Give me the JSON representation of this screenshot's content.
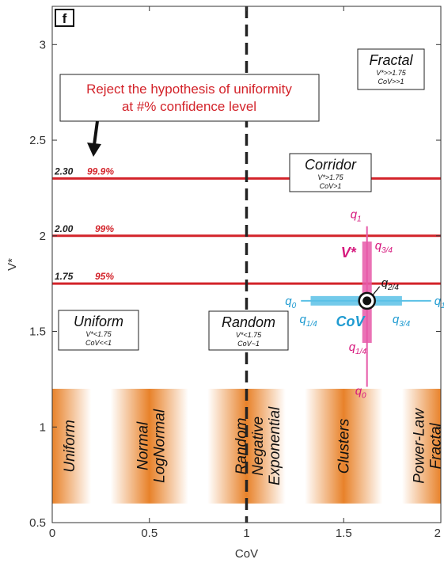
{
  "chart_data": {
    "type": "line",
    "panel_label": "f",
    "xlabel": "CoV",
    "ylabel": "V*",
    "xlim": [
      0,
      2
    ],
    "ylim": [
      0.5,
      3.2
    ],
    "x_ticks": [
      0,
      0.5,
      1,
      1.5,
      2
    ],
    "y_ticks": [
      0.5,
      1,
      1.5,
      2,
      2.5,
      3
    ],
    "x_tick_labels": [
      "0",
      "0.5",
      "1",
      "1.5",
      "2"
    ],
    "y_tick_labels": [
      "0.5",
      "1",
      "1.5",
      "2",
      "2.5",
      "3"
    ],
    "grid": false,
    "confidence_lines": [
      {
        "value": 2.3,
        "value_label": "2.30",
        "percent_label": "99.9%"
      },
      {
        "value": 2.0,
        "value_label": "2.00",
        "percent_label": "99%"
      },
      {
        "value": 1.75,
        "value_label": "1.75",
        "percent_label": "95%"
      }
    ],
    "random_line": {
      "x": 1
    },
    "reject_annotation": {
      "line1": "Reject the hypothesis of uniformity",
      "line2": "at #% confidence level"
    },
    "regions": [
      {
        "id": "fractal",
        "title": "Fractal",
        "line1": "V*>>1.75",
        "line2": "CoV>>1"
      },
      {
        "id": "corridor",
        "title": "Corridor",
        "line1": "V*>1.75",
        "line2": "CoV>1"
      },
      {
        "id": "uniform",
        "title": "Uniform",
        "line1": "V*<1.75",
        "line2": "CoV<<1"
      },
      {
        "id": "random",
        "title": "Random",
        "line1": "V*<1.75",
        "line2": "CoV~1"
      }
    ],
    "quartile_example": {
      "center": {
        "x": 1.62,
        "y": 1.66
      },
      "v_q0": 1.21,
      "v_q14": 1.44,
      "v_q34": 1.97,
      "v_q1": 2.05,
      "c_q0": 1.28,
      "c_q14": 1.33,
      "c_q34": 1.8,
      "c_q1": 1.95,
      "labels": {
        "vstar": "V*",
        "cov": "CoV",
        "q0": "q0",
        "q1": "q1",
        "q14": "q1/4",
        "q24": "q2/4",
        "q34": "q3/4"
      }
    },
    "distribution_band": {
      "y_range": [
        0.6,
        1.2
      ],
      "peaks": [
        0,
        0.5,
        1,
        1.5,
        2
      ],
      "labels": [
        {
          "x": 0.09,
          "lines": [
            "Uniform"
          ]
        },
        {
          "x": 0.51,
          "lines": [
            "Normal",
            "LogNormal"
          ]
        },
        {
          "x": 1.06,
          "lines": [
            "Random",
            "Negative",
            "Exponential"
          ]
        },
        {
          "x": 1.5,
          "lines": [
            "Clusters"
          ]
        },
        {
          "x": 1.93,
          "lines": [
            "Power-Law",
            "Fractal"
          ]
        }
      ]
    },
    "colors": {
      "confidence": "#d3232a",
      "vstar_bar": "#e659a8",
      "vstar_text": "#d6187d",
      "cov_bar": "#5bc1e6",
      "cov_text": "#1f9bd1",
      "band": "#e8822a",
      "axis": "#333333"
    }
  }
}
